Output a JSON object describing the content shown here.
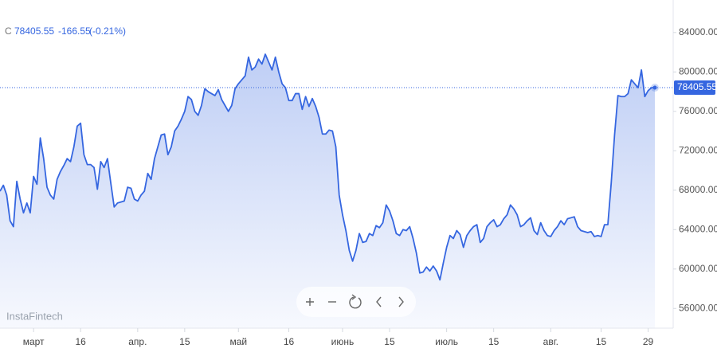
{
  "chart_data": {
    "type": "line",
    "legend": {
      "prefix": "C",
      "close": "78405.55",
      "change": "-166.55",
      "change_pct": "(-0.21%)"
    },
    "watermark": "InstaFintech",
    "color": "#3566e0",
    "last_price": {
      "value": 78405.55,
      "label": "78405.55"
    },
    "ylim": [
      54000,
      87300
    ],
    "yticks": [
      {
        "value": 56000,
        "label": "56000.00"
      },
      {
        "value": 60000,
        "label": "60000.00"
      },
      {
        "value": 64000,
        "label": "64000.00"
      },
      {
        "value": 68000,
        "label": "68000.00"
      },
      {
        "value": 72000,
        "label": "72000.00"
      },
      {
        "value": 76000,
        "label": "76000.00"
      },
      {
        "value": 80000,
        "label": "80000.00"
      },
      {
        "value": 84000,
        "label": "84000.00"
      }
    ],
    "categories": [
      null,
      null,
      null,
      null,
      null,
      null,
      null,
      null,
      null,
      null,
      "март",
      null,
      null,
      null,
      null,
      null,
      null,
      null,
      null,
      null,
      null,
      null,
      null,
      null,
      "16",
      null,
      null,
      null,
      null,
      null,
      null,
      null,
      null,
      null,
      null,
      null,
      null,
      null,
      null,
      null,
      null,
      "апр.",
      null,
      null,
      null,
      null,
      null,
      null,
      null,
      null,
      null,
      null,
      null,
      null,
      null,
      "15",
      null,
      null,
      null,
      null,
      null,
      null,
      null,
      null,
      null,
      null,
      null,
      null,
      null,
      null,
      null,
      "май",
      null,
      null,
      null,
      null,
      null,
      null,
      null,
      null,
      null,
      null,
      null,
      null,
      null,
      null,
      "16",
      null,
      null,
      null,
      null,
      null,
      null,
      null,
      null,
      null,
      null,
      null,
      null,
      null,
      null,
      null,
      "июнь",
      null,
      null,
      null,
      null,
      null,
      null,
      null,
      null,
      null,
      null,
      null,
      null,
      null,
      "15",
      null,
      null,
      null,
      null,
      null,
      null,
      null,
      null,
      null,
      null,
      null,
      null,
      null,
      null,
      null,
      null,
      "июль",
      null,
      null,
      null,
      null,
      null,
      null,
      null,
      null,
      null,
      null,
      null,
      null,
      null,
      "15",
      null,
      null,
      null,
      null,
      null,
      null,
      null,
      null,
      null,
      null,
      null,
      null,
      null,
      null,
      null,
      null,
      "авг.",
      null,
      null,
      null,
      null,
      null,
      null,
      null,
      null,
      null,
      null,
      null,
      null,
      null,
      null,
      "15",
      null,
      null,
      null,
      null,
      null,
      null,
      null,
      null,
      null,
      null,
      null,
      null,
      null,
      "29",
      null,
      null
    ],
    "values": [
      67900,
      68500,
      67500,
      64900,
      64300,
      68900,
      67100,
      65700,
      66700,
      65700,
      69400,
      68600,
      73300,
      71200,
      68300,
      67500,
      67100,
      69100,
      69900,
      70500,
      71200,
      70900,
      72400,
      74500,
      74800,
      71600,
      70600,
      70600,
      70300,
      68100,
      70900,
      70300,
      71200,
      68700,
      66300,
      66700,
      66800,
      66900,
      68300,
      68200,
      67100,
      66900,
      67500,
      67900,
      69700,
      69100,
      71200,
      72400,
      73600,
      73700,
      71600,
      72400,
      74000,
      74500,
      75200,
      76000,
      77500,
      77200,
      76000,
      75600,
      76600,
      78300,
      78000,
      77800,
      77600,
      78200,
      77200,
      76600,
      76000,
      76600,
      78300,
      78800,
      79200,
      79600,
      81500,
      80200,
      80500,
      81300,
      80800,
      81800,
      81000,
      80200,
      81500,
      80000,
      78800,
      78400,
      77100,
      77100,
      77800,
      77800,
      76200,
      77500,
      76500,
      77300,
      76500,
      75400,
      73700,
      73700,
      74100,
      74000,
      72400,
      67500,
      65500,
      63900,
      61900,
      60800,
      61900,
      63600,
      62700,
      62800,
      63600,
      63400,
      64400,
      64200,
      64700,
      66500,
      65900,
      64900,
      63600,
      63400,
      64000,
      63900,
      64300,
      63100,
      61600,
      59600,
      59700,
      60200,
      59800,
      60300,
      59800,
      58900,
      60600,
      62200,
      63400,
      63100,
      63900,
      63500,
      62200,
      63400,
      63900,
      64300,
      64500,
      62700,
      63100,
      64300,
      64700,
      65000,
      64300,
      64500,
      65100,
      65500,
      66500,
      66100,
      65500,
      64300,
      64500,
      64900,
      65200,
      63900,
      63500,
      64700,
      63900,
      63400,
      63300,
      63900,
      64300,
      64900,
      64500,
      65100,
      65200,
      65300,
      64300,
      63900,
      63800,
      63700,
      63800,
      63300,
      63400,
      63300,
      64500,
      64500,
      68700,
      73600,
      77600,
      77500,
      77500,
      77800,
      79200,
      78800,
      78400,
      80200,
      77500,
      78100,
      78400,
      78405.55
    ]
  }
}
